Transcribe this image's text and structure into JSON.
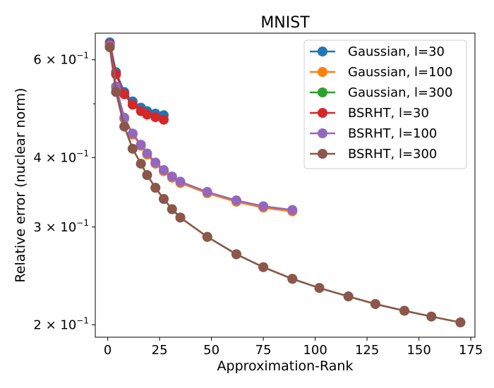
{
  "chart_data": {
    "type": "line",
    "title": "MNIST",
    "xlabel": "Approximation-Rank",
    "ylabel": "Relative error (nuclear norm)",
    "xlim": [
      -6,
      177
    ],
    "ylim": [
      0.19,
      0.67
    ],
    "yscale": "log",
    "grid": false,
    "legend_position": "top-right",
    "x_ticks": [
      0,
      25,
      50,
      75,
      100,
      125,
      150,
      175
    ],
    "x_tick_labels": [
      "0",
      "25",
      "50",
      "75",
      "100",
      "125",
      "150",
      "175"
    ],
    "y_ticks": [
      0.2,
      0.3,
      0.4,
      0.6
    ],
    "y_tick_labels": [
      {
        "base": "2 × 10",
        "exp": "−1"
      },
      {
        "base": "3 × 10",
        "exp": "−1"
      },
      {
        "base": "4 × 10",
        "exp": "−1"
      },
      {
        "base": "6 × 10",
        "exp": "−1"
      }
    ],
    "y_minor_ticks": [
      0.5
    ],
    "series": [
      {
        "name": "Gaussian, l=30",
        "color": "#1f77b4",
        "x": [
          1,
          4,
          8,
          12,
          16,
          19,
          23,
          27
        ],
        "y": [
          0.645,
          0.57,
          0.525,
          0.505,
          0.492,
          0.485,
          0.48,
          0.477
        ]
      },
      {
        "name": "Gaussian, l=100",
        "color": "#ff7f0e",
        "x": [
          1,
          4,
          8,
          12,
          16,
          19,
          23,
          27,
          31,
          35,
          48,
          62,
          75,
          89
        ],
        "y": [
          0.635,
          0.535,
          0.47,
          0.44,
          0.42,
          0.405,
          0.39,
          0.378,
          0.368,
          0.36,
          0.345,
          0.333,
          0.325,
          0.32
        ]
      },
      {
        "name": "Gaussian, l=300",
        "color": "#2ca02c",
        "x": [
          1,
          4,
          8,
          12,
          16,
          19,
          23,
          27,
          31,
          35,
          48,
          62,
          75,
          89,
          102,
          116,
          129,
          143,
          156,
          170
        ],
        "y": [
          0.632,
          0.525,
          0.455,
          0.415,
          0.39,
          0.372,
          0.353,
          0.337,
          0.323,
          0.312,
          0.288,
          0.268,
          0.254,
          0.242,
          0.233,
          0.225,
          0.218,
          0.212,
          0.207,
          0.202
        ]
      },
      {
        "name": "BSRHT, l=30",
        "color": "#d62728",
        "x": [
          1,
          4,
          8,
          12,
          16,
          19,
          23,
          27
        ],
        "y": [
          0.64,
          0.565,
          0.52,
          0.498,
          0.485,
          0.478,
          0.473,
          0.468
        ]
      },
      {
        "name": "BSRHT, l=100",
        "color": "#9467bd",
        "x": [
          1,
          4,
          8,
          12,
          16,
          19,
          23,
          27,
          31,
          35,
          48,
          62,
          75,
          89
        ],
        "y": [
          0.637,
          0.537,
          0.472,
          0.442,
          0.422,
          0.407,
          0.392,
          0.38,
          0.37,
          0.362,
          0.347,
          0.335,
          0.327,
          0.322
        ]
      },
      {
        "name": "BSRHT, l=300",
        "color": "#8c564b",
        "x": [
          1,
          4,
          8,
          12,
          16,
          19,
          23,
          27,
          31,
          35,
          48,
          62,
          75,
          89,
          102,
          116,
          129,
          143,
          156,
          170
        ],
        "y": [
          0.632,
          0.525,
          0.455,
          0.415,
          0.39,
          0.372,
          0.353,
          0.337,
          0.323,
          0.312,
          0.288,
          0.268,
          0.254,
          0.242,
          0.233,
          0.225,
          0.218,
          0.212,
          0.207,
          0.202
        ]
      }
    ]
  }
}
